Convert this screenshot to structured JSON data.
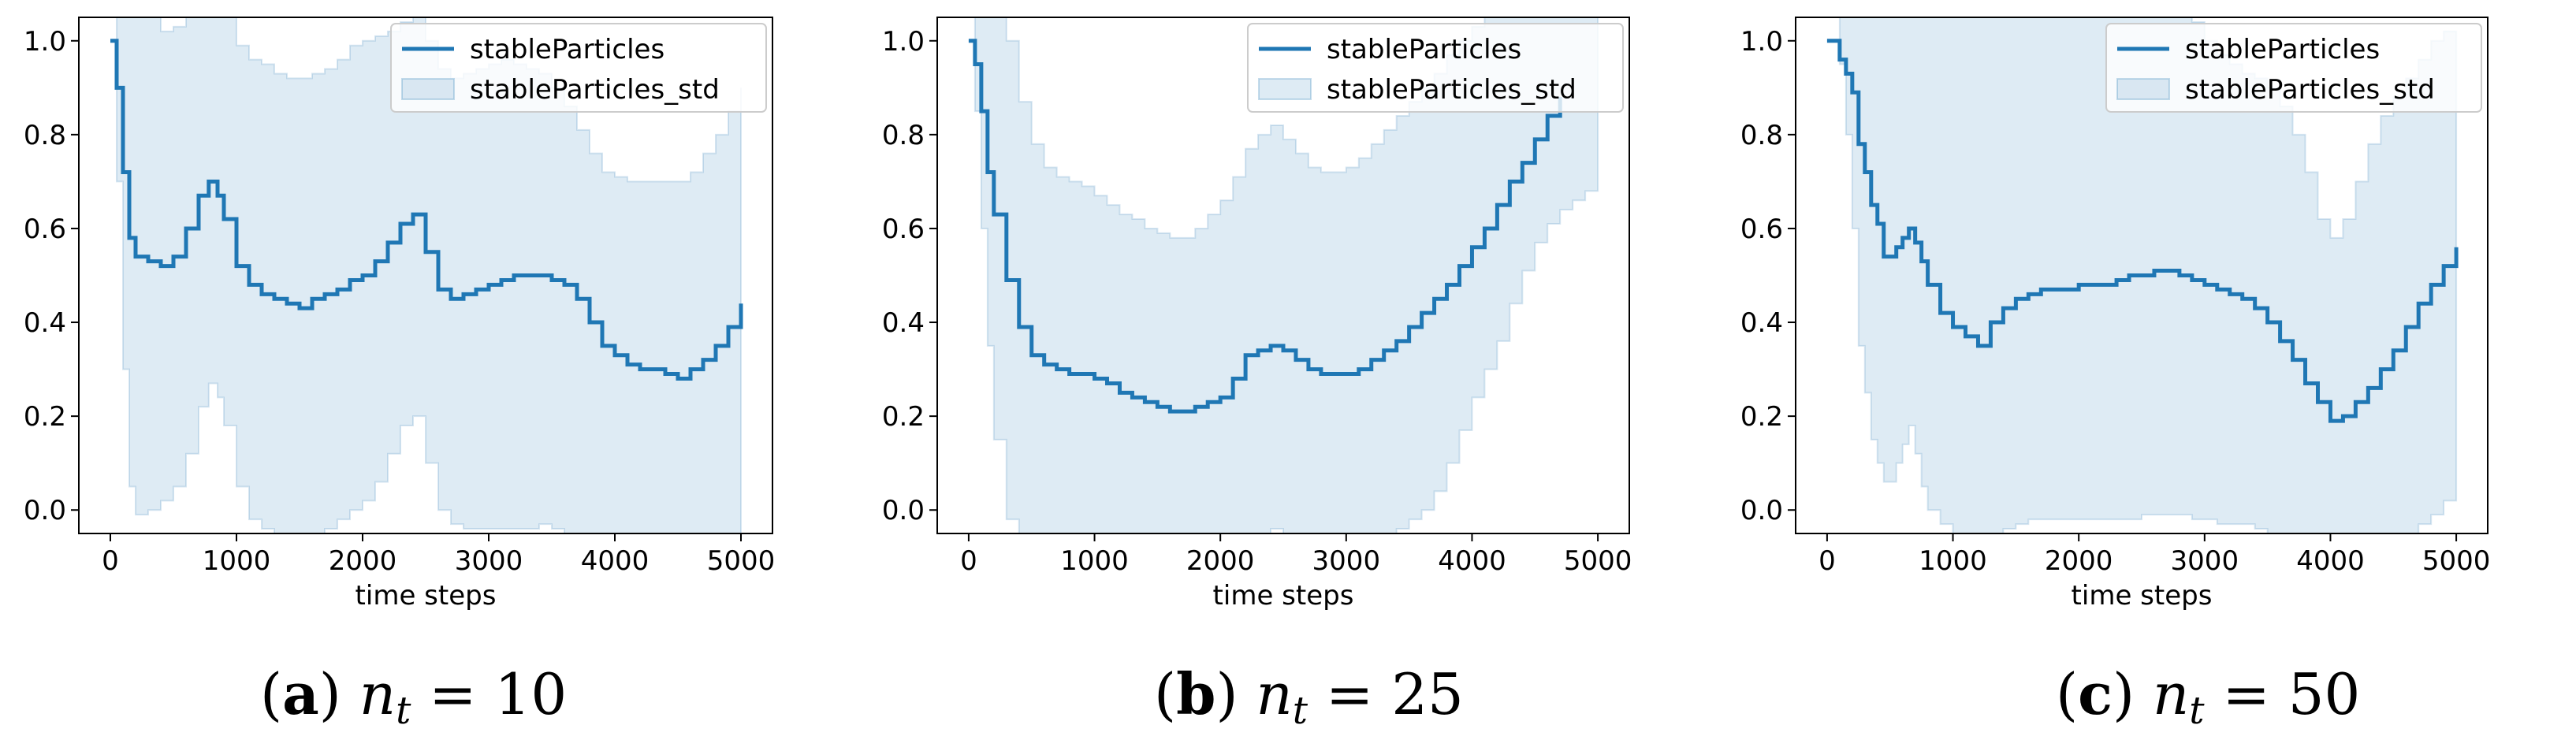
{
  "figure": {
    "panels": [
      {
        "caption_label": "a",
        "caption_var": "n",
        "caption_sub": "t",
        "caption_value": "= 10"
      },
      {
        "caption_label": "b",
        "caption_var": "n",
        "caption_sub": "t",
        "caption_value": "= 25"
      },
      {
        "caption_label": "c",
        "caption_var": "n",
        "caption_sub": "t",
        "caption_value": "= 50"
      }
    ]
  },
  "chart_data": [
    {
      "type": "line",
      "title": "",
      "xlabel": "time steps",
      "ylabel": "",
      "xlim": [
        -250,
        5250
      ],
      "ylim": [
        -0.05,
        1.05
      ],
      "xticks": [
        0,
        1000,
        2000,
        3000,
        4000,
        5000
      ],
      "yticks": [
        0.0,
        0.2,
        0.4,
        0.6,
        0.8,
        1.0
      ],
      "legend_position": "top-right",
      "colors": {
        "line": "#1f77b4",
        "band": "#1f77b4"
      },
      "series": [
        {
          "name": "stableParticles",
          "kind": "line",
          "x": [
            0,
            50,
            100,
            150,
            200,
            300,
            400,
            500,
            600,
            700,
            780,
            850,
            900,
            1000,
            1100,
            1200,
            1300,
            1400,
            1500,
            1600,
            1700,
            1800,
            1900,
            2000,
            2100,
            2200,
            2300,
            2400,
            2500,
            2600,
            2700,
            2800,
            2900,
            3000,
            3100,
            3200,
            3300,
            3400,
            3500,
            3600,
            3700,
            3800,
            3900,
            4000,
            4100,
            4200,
            4300,
            4400,
            4500,
            4600,
            4700,
            4800,
            4900,
            5000
          ],
          "y": [
            1.0,
            0.9,
            0.72,
            0.58,
            0.54,
            0.53,
            0.52,
            0.54,
            0.6,
            0.67,
            0.7,
            0.67,
            0.62,
            0.52,
            0.48,
            0.46,
            0.45,
            0.44,
            0.43,
            0.45,
            0.46,
            0.47,
            0.49,
            0.5,
            0.53,
            0.57,
            0.61,
            0.63,
            0.55,
            0.47,
            0.45,
            0.46,
            0.47,
            0.48,
            0.49,
            0.5,
            0.5,
            0.5,
            0.49,
            0.48,
            0.45,
            0.4,
            0.35,
            0.33,
            0.31,
            0.3,
            0.3,
            0.29,
            0.28,
            0.3,
            0.32,
            0.35,
            0.39,
            0.44
          ]
        },
        {
          "name": "stableParticles_std",
          "kind": "band",
          "x": [
            0,
            50,
            100,
            150,
            200,
            300,
            400,
            500,
            600,
            700,
            780,
            850,
            900,
            1000,
            1100,
            1200,
            1300,
            1400,
            1500,
            1600,
            1700,
            1800,
            1900,
            2000,
            2100,
            2200,
            2300,
            2400,
            2500,
            2600,
            2700,
            2800,
            2900,
            3000,
            3100,
            3200,
            3300,
            3400,
            3500,
            3600,
            3700,
            3800,
            3900,
            4000,
            4100,
            4200,
            4300,
            4400,
            4500,
            4600,
            4700,
            4800,
            4900,
            5000
          ],
          "lower": [
            1.0,
            0.7,
            0.3,
            0.05,
            -0.01,
            0.0,
            0.02,
            0.05,
            0.12,
            0.22,
            0.27,
            0.24,
            0.18,
            0.05,
            -0.02,
            -0.04,
            -0.05,
            -0.06,
            -0.06,
            -0.05,
            -0.04,
            -0.02,
            0.0,
            0.02,
            0.06,
            0.12,
            0.18,
            0.2,
            0.1,
            0.0,
            -0.03,
            -0.04,
            -0.04,
            -0.04,
            -0.04,
            -0.04,
            -0.04,
            -0.03,
            -0.04,
            -0.05,
            -0.07,
            -0.1,
            -0.12,
            -0.13,
            -0.14,
            -0.15,
            -0.15,
            -0.15,
            -0.16,
            -0.14,
            -0.12,
            -0.09,
            -0.05,
            0.0
          ],
          "upper": [
            1.0,
            1.1,
            1.14,
            1.11,
            1.09,
            1.06,
            1.02,
            1.03,
            1.08,
            1.12,
            1.13,
            1.1,
            1.06,
            0.99,
            0.96,
            0.95,
            0.93,
            0.92,
            0.92,
            0.93,
            0.94,
            0.96,
            0.99,
            1.0,
            1.01,
            1.02,
            1.04,
            1.06,
            1.0,
            0.94,
            0.92,
            0.93,
            0.94,
            0.95,
            0.96,
            0.95,
            0.94,
            0.93,
            0.9,
            0.86,
            0.81,
            0.76,
            0.72,
            0.71,
            0.7,
            0.7,
            0.7,
            0.7,
            0.7,
            0.72,
            0.76,
            0.8,
            0.85,
            0.9
          ]
        }
      ]
    },
    {
      "type": "line",
      "title": "",
      "xlabel": "time steps",
      "ylabel": "",
      "xlim": [
        -250,
        5250
      ],
      "ylim": [
        -0.05,
        1.05
      ],
      "xticks": [
        0,
        1000,
        2000,
        3000,
        4000,
        5000
      ],
      "yticks": [
        0.0,
        0.2,
        0.4,
        0.6,
        0.8,
        1.0
      ],
      "legend_position": "top-right",
      "colors": {
        "line": "#1f77b4",
        "band": "#1f77b4"
      },
      "series": [
        {
          "name": "stableParticles",
          "kind": "line",
          "x": [
            0,
            50,
            100,
            150,
            200,
            300,
            400,
            500,
            600,
            700,
            800,
            900,
            1000,
            1100,
            1200,
            1300,
            1400,
            1500,
            1600,
            1700,
            1800,
            1900,
            2000,
            2100,
            2200,
            2300,
            2400,
            2500,
            2600,
            2700,
            2800,
            2900,
            3000,
            3100,
            3200,
            3300,
            3400,
            3500,
            3600,
            3700,
            3800,
            3900,
            4000,
            4100,
            4200,
            4300,
            4400,
            4500,
            4600,
            4700
          ],
          "y": [
            1.0,
            0.95,
            0.85,
            0.72,
            0.63,
            0.49,
            0.39,
            0.33,
            0.31,
            0.3,
            0.29,
            0.29,
            0.28,
            0.27,
            0.25,
            0.24,
            0.23,
            0.22,
            0.21,
            0.21,
            0.22,
            0.23,
            0.24,
            0.28,
            0.33,
            0.34,
            0.35,
            0.34,
            0.32,
            0.3,
            0.29,
            0.29,
            0.29,
            0.3,
            0.32,
            0.34,
            0.36,
            0.39,
            0.42,
            0.45,
            0.48,
            0.52,
            0.56,
            0.6,
            0.65,
            0.7,
            0.74,
            0.79,
            0.84,
            0.88
          ]
        },
        {
          "name": "stableParticles_std",
          "kind": "band",
          "x": [
            0,
            50,
            100,
            150,
            200,
            300,
            400,
            500,
            600,
            700,
            800,
            900,
            1000,
            1100,
            1200,
            1300,
            1400,
            1500,
            1600,
            1700,
            1800,
            1900,
            2000,
            2100,
            2200,
            2300,
            2400,
            2500,
            2600,
            2700,
            2800,
            2900,
            3000,
            3100,
            3200,
            3300,
            3400,
            3500,
            3600,
            3700,
            3800,
            3900,
            4000,
            4100,
            4200,
            4300,
            4400,
            4500,
            4600,
            4700,
            4800,
            4900,
            5000
          ],
          "lower": [
            1.0,
            0.85,
            0.6,
            0.35,
            0.15,
            -0.02,
            -0.06,
            -0.09,
            -0.11,
            -0.12,
            -0.12,
            -0.12,
            -0.12,
            -0.13,
            -0.14,
            -0.15,
            -0.16,
            -0.17,
            -0.18,
            -0.19,
            -0.19,
            -0.18,
            -0.17,
            -0.12,
            -0.06,
            -0.05,
            -0.04,
            -0.05,
            -0.07,
            -0.09,
            -0.1,
            -0.1,
            -0.1,
            -0.09,
            -0.08,
            -0.06,
            -0.04,
            -0.02,
            0.0,
            0.04,
            0.1,
            0.17,
            0.24,
            0.3,
            0.36,
            0.44,
            0.51,
            0.57,
            0.61,
            0.64,
            0.66,
            0.68,
            0.68
          ],
          "upper": [
            1.0,
            1.1,
            1.12,
            1.1,
            1.08,
            1.0,
            0.87,
            0.78,
            0.73,
            0.71,
            0.7,
            0.69,
            0.67,
            0.65,
            0.63,
            0.62,
            0.6,
            0.59,
            0.58,
            0.58,
            0.6,
            0.63,
            0.66,
            0.71,
            0.77,
            0.8,
            0.82,
            0.79,
            0.76,
            0.73,
            0.72,
            0.72,
            0.73,
            0.75,
            0.78,
            0.81,
            0.84,
            0.87,
            0.9,
            0.93,
            0.97,
            1.0,
            1.03,
            1.06,
            1.08,
            1.1,
            1.11,
            1.12,
            1.12,
            1.12,
            1.12,
            1.12,
            1.12
          ]
        }
      ]
    },
    {
      "type": "line",
      "title": "",
      "xlabel": "time steps",
      "ylabel": "",
      "xlim": [
        -250,
        5250
      ],
      "ylim": [
        -0.05,
        1.05
      ],
      "xticks": [
        0,
        1000,
        2000,
        3000,
        4000,
        5000
      ],
      "yticks": [
        0.0,
        0.2,
        0.4,
        0.6,
        0.8,
        1.0
      ],
      "legend_position": "top-right",
      "colors": {
        "line": "#1f77b4",
        "band": "#1f77b4"
      },
      "series": [
        {
          "name": "stableParticles",
          "kind": "line",
          "x": [
            0,
            100,
            150,
            200,
            250,
            300,
            350,
            400,
            450,
            500,
            550,
            600,
            650,
            700,
            750,
            800,
            900,
            1000,
            1100,
            1200,
            1300,
            1400,
            1500,
            1600,
            1700,
            1800,
            1900,
            2000,
            2100,
            2200,
            2300,
            2400,
            2500,
            2600,
            2700,
            2800,
            2900,
            3000,
            3100,
            3200,
            3300,
            3400,
            3500,
            3600,
            3700,
            3800,
            3900,
            4000,
            4100,
            4200,
            4300,
            4400,
            4500,
            4600,
            4700,
            4800,
            4900,
            5000
          ],
          "y": [
            1.0,
            0.96,
            0.93,
            0.89,
            0.78,
            0.72,
            0.65,
            0.61,
            0.54,
            0.54,
            0.56,
            0.58,
            0.6,
            0.57,
            0.53,
            0.48,
            0.42,
            0.39,
            0.37,
            0.35,
            0.4,
            0.43,
            0.45,
            0.46,
            0.47,
            0.47,
            0.47,
            0.48,
            0.48,
            0.48,
            0.49,
            0.5,
            0.5,
            0.51,
            0.51,
            0.5,
            0.49,
            0.48,
            0.47,
            0.46,
            0.45,
            0.43,
            0.4,
            0.36,
            0.32,
            0.27,
            0.23,
            0.19,
            0.2,
            0.23,
            0.26,
            0.3,
            0.34,
            0.39,
            0.44,
            0.48,
            0.52,
            0.56
          ]
        },
        {
          "name": "stableParticles_std",
          "kind": "band",
          "x": [
            0,
            100,
            150,
            200,
            250,
            300,
            350,
            400,
            450,
            500,
            550,
            600,
            650,
            700,
            750,
            800,
            900,
            1000,
            1100,
            1200,
            1300,
            1400,
            1500,
            1600,
            1700,
            1800,
            1900,
            2000,
            2100,
            2200,
            2300,
            2400,
            2500,
            2600,
            2700,
            2800,
            2900,
            3000,
            3100,
            3200,
            3300,
            3400,
            3500,
            3600,
            3700,
            3800,
            3900,
            4000,
            4100,
            4200,
            4300,
            4400,
            4500,
            4600,
            4700,
            4800,
            4900,
            5000
          ],
          "lower": [
            1.0,
            0.95,
            0.8,
            0.6,
            0.35,
            0.25,
            0.15,
            0.1,
            0.06,
            0.06,
            0.1,
            0.14,
            0.18,
            0.12,
            0.05,
            0.0,
            -0.03,
            -0.06,
            -0.08,
            -0.09,
            -0.06,
            -0.04,
            -0.03,
            -0.02,
            -0.02,
            -0.02,
            -0.02,
            -0.02,
            -0.02,
            -0.02,
            -0.02,
            -0.02,
            -0.01,
            -0.01,
            -0.01,
            -0.01,
            -0.02,
            -0.02,
            -0.03,
            -0.03,
            -0.03,
            -0.04,
            -0.05,
            -0.06,
            -0.08,
            -0.1,
            -0.12,
            -0.13,
            -0.12,
            -0.11,
            -0.1,
            -0.09,
            -0.07,
            -0.05,
            -0.03,
            -0.01,
            0.02,
            0.04
          ],
          "upper": [
            1.0,
            1.1,
            1.12,
            1.14,
            1.14,
            1.14,
            1.14,
            1.12,
            1.1,
            1.1,
            1.1,
            1.1,
            1.1,
            1.1,
            1.1,
            1.1,
            1.1,
            1.1,
            1.1,
            1.1,
            1.1,
            1.1,
            1.1,
            1.1,
            1.1,
            1.1,
            1.1,
            1.1,
            1.1,
            1.1,
            1.1,
            1.1,
            1.1,
            1.1,
            1.1,
            1.08,
            1.04,
            1.0,
            0.97,
            0.95,
            0.93,
            0.92,
            0.9,
            0.86,
            0.8,
            0.72,
            0.62,
            0.58,
            0.62,
            0.7,
            0.78,
            0.84,
            0.88,
            0.92,
            0.96,
            1.0,
            1.02,
            1.02
          ]
        }
      ]
    }
  ]
}
